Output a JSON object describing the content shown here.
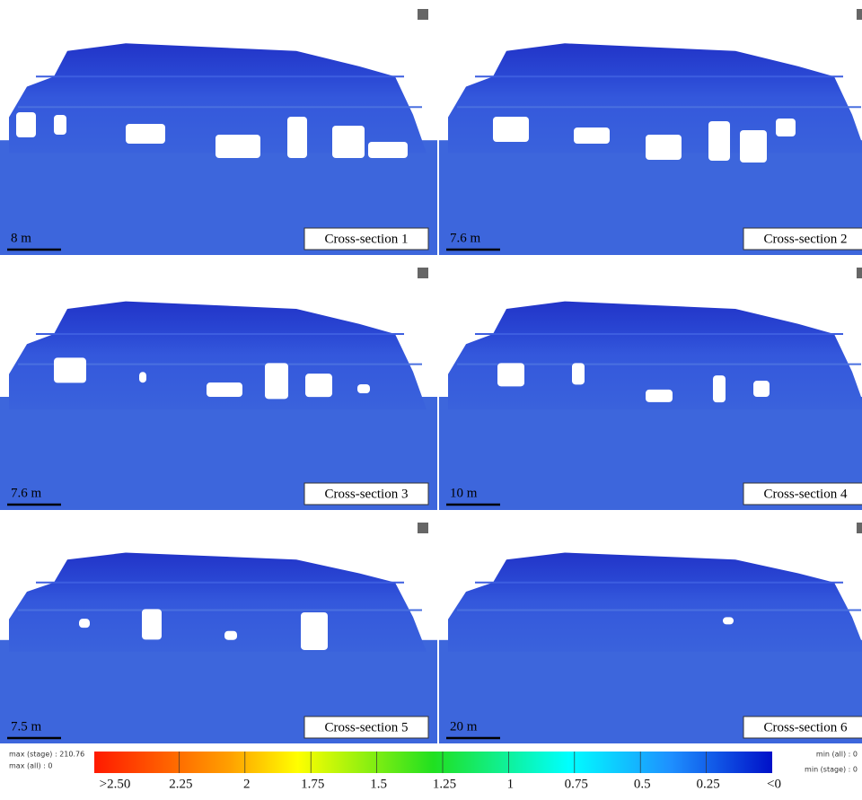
{
  "panels": [
    {
      "scale": "8 m",
      "title": "Cross-section 1"
    },
    {
      "scale": "7.6 m",
      "title": "Cross-section 2"
    },
    {
      "scale": "7.6 m",
      "title": "Cross-section 3"
    },
    {
      "scale": "10 m",
      "title": "Cross-section 4"
    },
    {
      "scale": "7.5 m",
      "title": "Cross-section 5"
    },
    {
      "scale": "20 m",
      "title": "Cross-section 6"
    }
  ],
  "colorbar": {
    "labels": [
      ">2.50",
      "2.25",
      "2",
      "1.75",
      "1.5",
      "1.25",
      "1",
      "0.75",
      "0.5",
      "0.25",
      "<0"
    ]
  },
  "stats_left": [
    "max (stage) : 210.76",
    "max (all) :   0"
  ],
  "stats_right": [
    "min (all) :   0",
    "min (stage) : 0"
  ]
}
